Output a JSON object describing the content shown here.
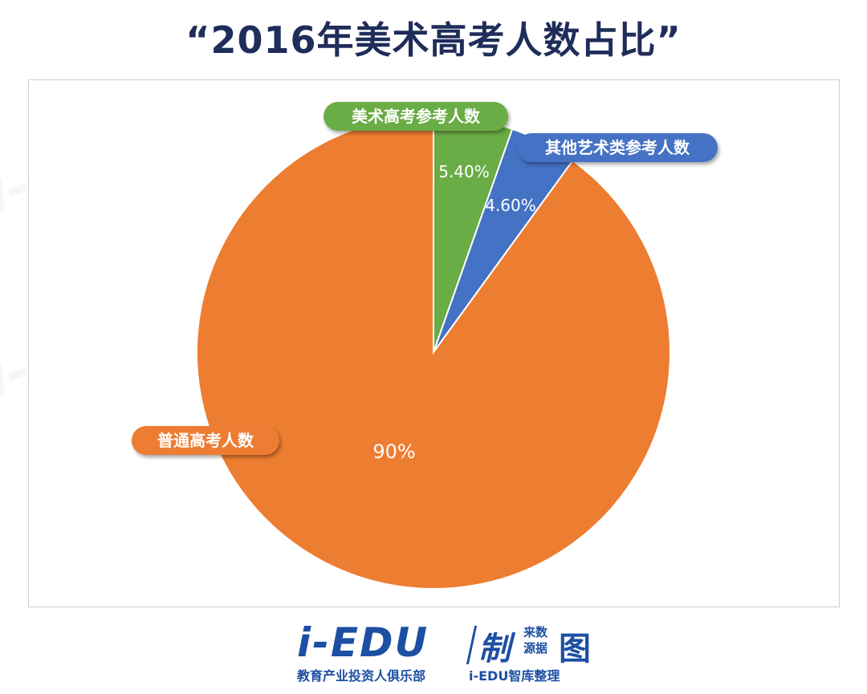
{
  "title": "“2016年美术高考人数占比”",
  "chart_data": {
    "type": "pie",
    "title": "“2016年美术高考人数占比”",
    "slices": [
      {
        "label": "美术高考参考人数",
        "value": 5.4,
        "display": "5.40%",
        "color": "#6aac45"
      },
      {
        "label": "其他艺术类参考人数",
        "value": 4.6,
        "display": "4.60%",
        "color": "#4472c4"
      },
      {
        "label": "普通高考人数",
        "value": 90,
        "display": "90%",
        "color": "#ed7d31"
      }
    ],
    "start_angle_deg": 0,
    "direction": "clockwise"
  },
  "footer": {
    "logo": "i-EDU",
    "zhi": "制",
    "small_top": "来数",
    "small_bottom": "源据",
    "tu": "图",
    "sub_left": "教育产业投资人俱乐部",
    "sub_right": "i-EDU智库整理"
  },
  "watermark": {
    "text": "i-EDU"
  }
}
